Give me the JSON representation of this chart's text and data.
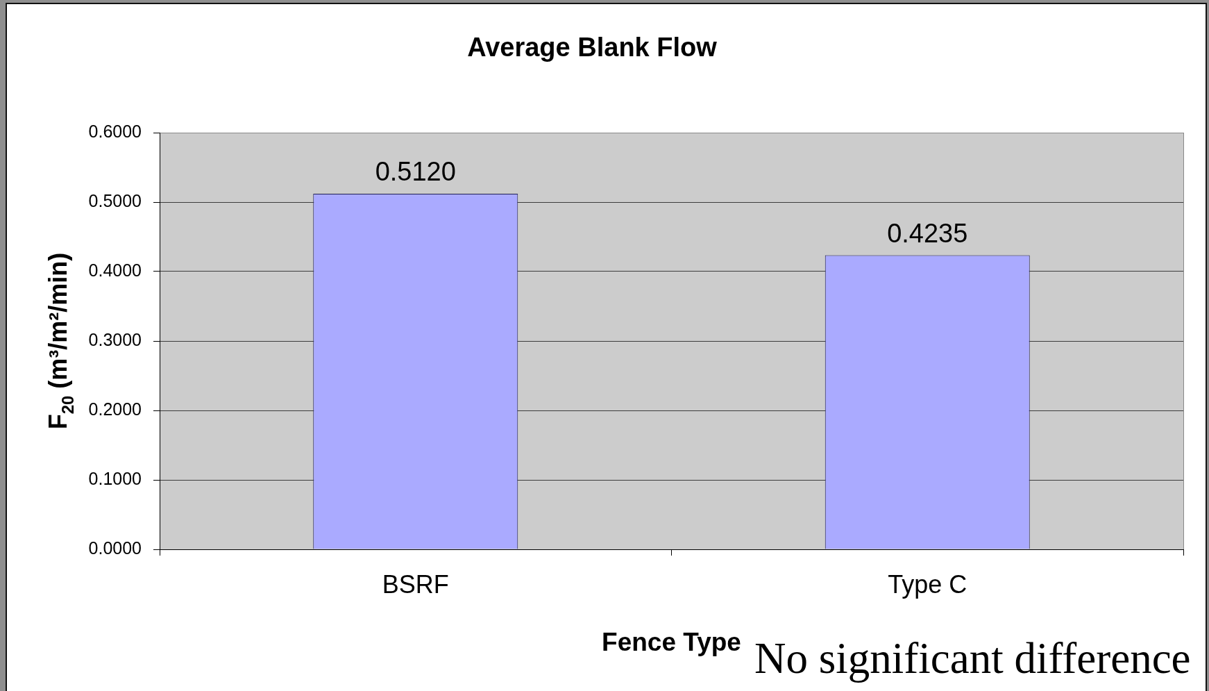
{
  "chart_data": {
    "type": "bar",
    "title": "Average Blank Flow",
    "xlabel": "Fence Type",
    "ylabel": "F$_{20}$ (m³/m²/min)",
    "annotations": [
      "No significant difference"
    ],
    "categories": [
      "BSRF",
      "Type C"
    ],
    "values": [
      0.512,
      0.4235
    ],
    "color": "#aaaaff",
    "value_labels": [
      "0.5120",
      "0.4235"
    ],
    "ylim": [
      0,
      0.6
    ],
    "yticks": [
      {
        "value": 0,
        "label": "0.0000"
      },
      {
        "value": 0.1,
        "label": "0.1000"
      },
      {
        "value": 0.2,
        "label": "0.2000"
      },
      {
        "value": 0.3,
        "label": "0.3000"
      },
      {
        "value": 0.4,
        "label": "0.4000"
      },
      {
        "value": 0.5,
        "label": "0.5000"
      },
      {
        "value": 0.6,
        "label": "0.6000"
      }
    ],
    "grid": "y"
  }
}
